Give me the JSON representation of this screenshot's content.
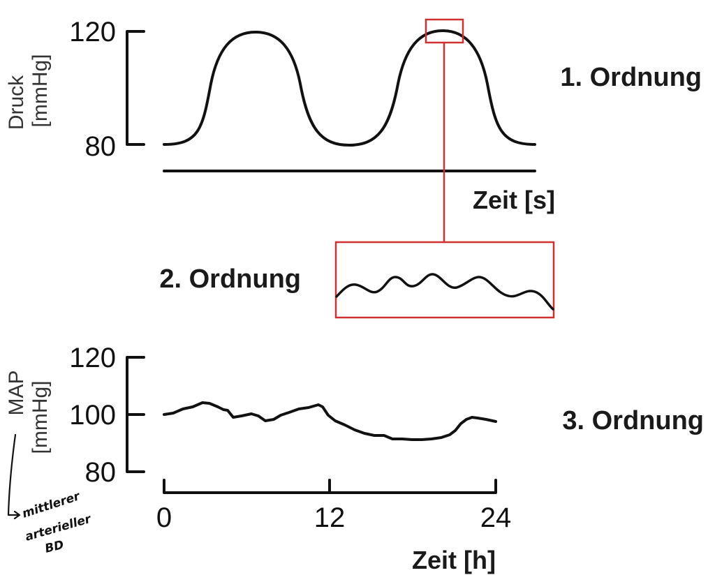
{
  "panel1": {
    "y_ticks": [
      "120",
      "80"
    ],
    "y_title": [
      "Druck",
      "[mmHg]"
    ],
    "order_label": "1. Ordnung",
    "x_label": "Zeit [s]"
  },
  "panel2": {
    "order_label": "2. Ordnung"
  },
  "panel3": {
    "y_ticks": [
      "120",
      "100",
      "80"
    ],
    "y_title": [
      "MAP",
      "[mmHg]"
    ],
    "order_label": "3. Ordnung",
    "x_ticks": [
      "0",
      "12",
      "24"
    ],
    "x_label": "Zeit [h]",
    "note": [
      "mittlerer",
      "arterieller",
      "BD"
    ]
  },
  "colors": {
    "line": "#111111",
    "highlight": "#d03030"
  }
}
